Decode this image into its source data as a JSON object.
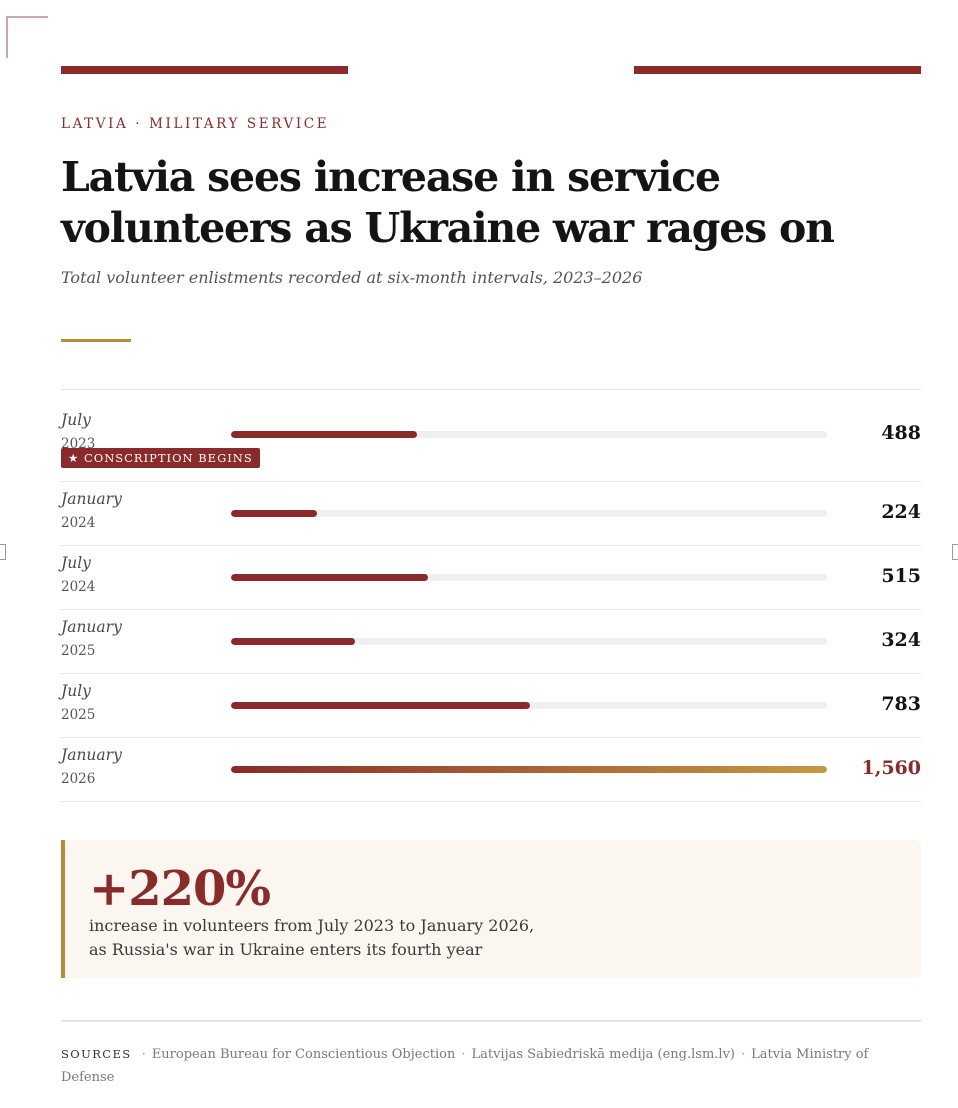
{
  "kicker": "LATVIA · MILITARY SERVICE",
  "title": "Latvia sees increase in service volunteers as Ukraine war rages on",
  "subtitle": "Total volunteer enlistments recorded at six-month intervals, 2023–2026",
  "colors": {
    "accent": "#8b2a2a",
    "gold": "#b98c3a",
    "track": "#efefef",
    "callout_bg": "#fbf7f0"
  },
  "chart_data": {
    "type": "bar",
    "orientation": "horizontal",
    "categories": [
      "July 2023",
      "January 2024",
      "July 2024",
      "January 2025",
      "July 2025",
      "January 2026"
    ],
    "rows": [
      {
        "month": "July",
        "year": "2023",
        "value": 488,
        "value_label": "488",
        "badge": "★ CONSCRIPTION BEGINS"
      },
      {
        "month": "January",
        "year": "2024",
        "value": 224,
        "value_label": "224"
      },
      {
        "month": "July",
        "year": "2024",
        "value": 515,
        "value_label": "515"
      },
      {
        "month": "January",
        "year": "2025",
        "value": 324,
        "value_label": "324"
      },
      {
        "month": "July",
        "year": "2025",
        "value": 783,
        "value_label": "783"
      },
      {
        "month": "January",
        "year": "2026",
        "value": 1560,
        "value_label": "1,560",
        "highlight": true
      }
    ],
    "xlim": [
      0,
      1560
    ],
    "grid": false,
    "legend": "none"
  },
  "callout": {
    "stat": "+220%",
    "line1": "increase in volunteers from July 2023 to January 2026,",
    "line2": "as Russia's war in Ukraine enters its fourth year"
  },
  "sources": {
    "label": "SOURCES",
    "items": [
      "European Bureau for Conscientious Objection",
      "Latvijas Sabiedriskā medija (eng.lsm.lv)",
      "Latvia Ministry of Defense"
    ]
  }
}
